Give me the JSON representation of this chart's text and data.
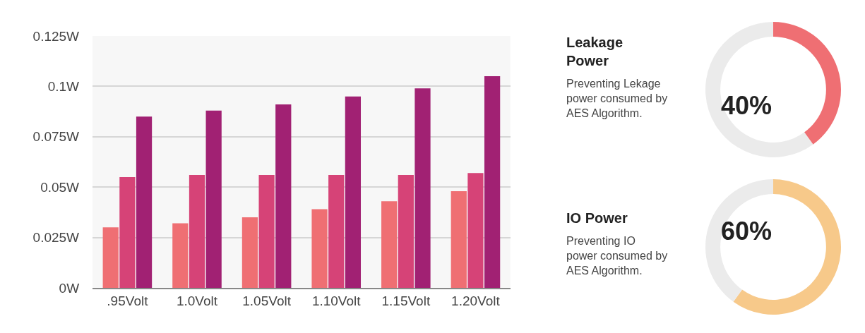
{
  "chart_data": [
    {
      "type": "bar",
      "categories": [
        ".95Volt",
        "1.0Volt",
        "1.05Volt",
        "1.10Volt",
        "1.15Volt",
        "1.20Volt"
      ],
      "series": [
        {
          "color": "#ef6f73",
          "values": [
            0.03,
            0.032,
            0.035,
            0.039,
            0.043,
            0.048
          ]
        },
        {
          "color": "#d64377",
          "values": [
            0.055,
            0.056,
            0.056,
            0.056,
            0.056,
            0.057
          ]
        },
        {
          "color": "#a12173",
          "values": [
            0.085,
            0.088,
            0.091,
            0.095,
            0.099,
            0.105
          ]
        }
      ],
      "ylim": [
        0,
        0.125
      ],
      "yticks": [
        {
          "value": 0,
          "label": "0W"
        },
        {
          "value": 0.025,
          "label": "0.025W"
        },
        {
          "value": 0.05,
          "label": "0.05W"
        },
        {
          "value": 0.075,
          "label": "0.075W"
        },
        {
          "value": 0.1,
          "label": "0.1W"
        },
        {
          "value": 0.125,
          "label": "0.125W"
        }
      ],
      "grid": "y"
    },
    {
      "type": "donut",
      "title": "Leakage Power",
      "subtitle": "Preventing Lekage power consumed by AES Algorithm.",
      "categories": [
        null,
        null
      ],
      "values": [
        40,
        60
      ],
      "colors": [
        "#ef6f73",
        "#ebebeb"
      ],
      "annotations": [
        "40%"
      ]
    },
    {
      "type": "donut",
      "title": "IO Power",
      "subtitle": "Preventing IO power consumed by AES Algorithm.",
      "categories": [
        null,
        null
      ],
      "values": [
        60,
        40
      ],
      "colors": [
        "#f7c98a",
        "#ebebeb"
      ],
      "annotations": [
        "60%"
      ]
    }
  ]
}
